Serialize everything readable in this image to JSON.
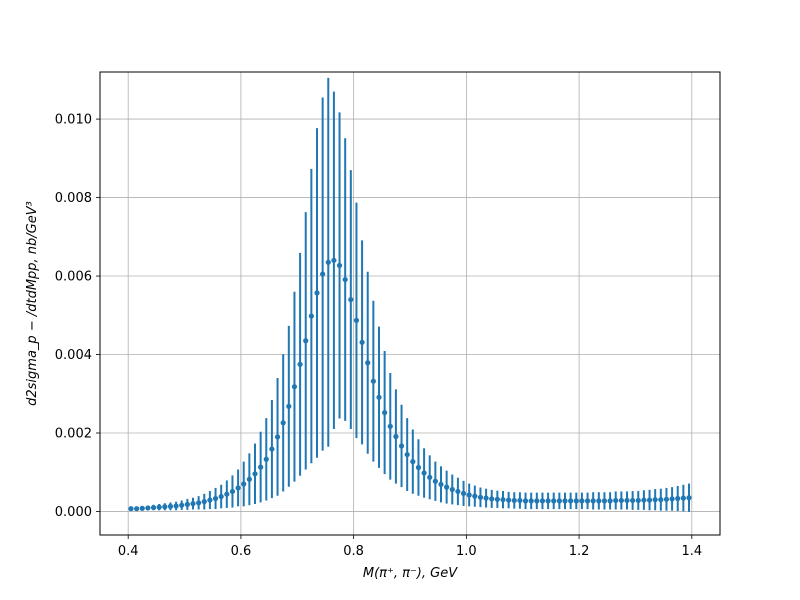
{
  "chart_data": {
    "type": "scatter",
    "title": "",
    "xlabel": "M(π⁺, π⁻), GeV",
    "ylabel": "d2sigma_p − /dtdMpp, nb/GeV³",
    "xlim": [
      0.35,
      1.45
    ],
    "ylim": [
      -0.0006,
      0.0112
    ],
    "xticks": [
      0.4,
      0.6,
      0.8,
      1.0,
      1.2,
      1.4
    ],
    "xtick_labels": [
      "0.4",
      "0.6",
      "0.8",
      "1.0",
      "1.2",
      "1.4"
    ],
    "yticks": [
      0.0,
      0.002,
      0.004,
      0.006,
      0.008,
      0.01
    ],
    "ytick_labels": [
      "0.000",
      "0.002",
      "0.004",
      "0.006",
      "0.008",
      "0.010"
    ],
    "grid": true,
    "color": "#1f77b4",
    "series": [
      {
        "x": [
          0.405,
          0.415,
          0.425,
          0.435,
          0.445,
          0.455,
          0.465,
          0.475,
          0.485,
          0.495,
          0.505,
          0.515,
          0.525,
          0.535,
          0.545,
          0.555,
          0.565,
          0.575,
          0.585,
          0.595,
          0.605,
          0.615,
          0.625,
          0.635,
          0.645,
          0.655,
          0.665,
          0.675,
          0.685,
          0.695,
          0.705,
          0.715,
          0.725,
          0.735,
          0.745,
          0.755,
          0.765,
          0.775,
          0.785,
          0.795,
          0.805,
          0.815,
          0.825,
          0.835,
          0.845,
          0.855,
          0.865,
          0.875,
          0.885,
          0.895,
          0.905,
          0.915,
          0.925,
          0.935,
          0.945,
          0.955,
          0.965,
          0.975,
          0.985,
          0.995,
          1.005,
          1.015,
          1.025,
          1.035,
          1.045,
          1.055,
          1.065,
          1.075,
          1.085,
          1.095,
          1.105,
          1.115,
          1.125,
          1.135,
          1.145,
          1.155,
          1.165,
          1.175,
          1.185,
          1.195,
          1.205,
          1.215,
          1.225,
          1.235,
          1.245,
          1.255,
          1.265,
          1.275,
          1.285,
          1.295,
          1.305,
          1.315,
          1.325,
          1.335,
          1.345,
          1.355,
          1.365,
          1.375,
          1.385,
          1.395
        ],
        "y": [
          7e-05,
          7e-05,
          8e-05,
          9e-05,
          0.0001,
          0.00011,
          0.00012,
          0.00013,
          0.00014,
          0.00016,
          0.00018,
          0.0002,
          0.00022,
          0.00025,
          0.00029,
          0.00033,
          0.00038,
          0.00044,
          0.00051,
          0.0006,
          0.0007,
          0.00082,
          0.00096,
          0.00113,
          0.00133,
          0.00159,
          0.0019,
          0.00226,
          0.00268,
          0.00318,
          0.00375,
          0.00435,
          0.00498,
          0.00557,
          0.00605,
          0.00635,
          0.0064,
          0.00627,
          0.00591,
          0.0054,
          0.00487,
          0.00431,
          0.00379,
          0.00332,
          0.00291,
          0.00252,
          0.00217,
          0.00191,
          0.00167,
          0.00145,
          0.00127,
          0.00112,
          0.00098,
          0.00087,
          0.00077,
          0.00069,
          0.00062,
          0.00056,
          0.00051,
          0.00046,
          0.00042,
          0.00039,
          0.00036,
          0.00034,
          0.00032,
          0.00031,
          0.0003,
          0.00029,
          0.00028,
          0.00028,
          0.00027,
          0.00027,
          0.00027,
          0.00027,
          0.00027,
          0.00027,
          0.00027,
          0.00027,
          0.00027,
          0.00027,
          0.00027,
          0.00027,
          0.00027,
          0.00027,
          0.00027,
          0.00027,
          0.00028,
          0.00028,
          0.00028,
          0.00028,
          0.00028,
          0.00029,
          0.00029,
          0.0003,
          0.0003,
          0.00031,
          0.00032,
          0.00033,
          0.00034,
          0.00035
        ],
        "yerr": [
          4e-05,
          5e-05,
          6e-05,
          6e-05,
          7e-05,
          8e-05,
          9e-05,
          0.0001,
          0.00011,
          0.00012,
          0.00014,
          0.00015,
          0.00017,
          0.0002,
          0.00023,
          0.00027,
          0.0003,
          0.00035,
          0.00041,
          0.00047,
          0.00057,
          0.00066,
          0.00077,
          0.0009,
          0.00105,
          0.00125,
          0.0015,
          0.00175,
          0.00205,
          0.00242,
          0.00284,
          0.00328,
          0.00375,
          0.0042,
          0.0045,
          0.0047,
          0.0043,
          0.0039,
          0.0036,
          0.0033,
          0.003,
          0.0026,
          0.00232,
          0.00205,
          0.0018,
          0.00157,
          0.00136,
          0.0012,
          0.00105,
          0.00093,
          0.00082,
          0.00072,
          0.00063,
          0.00056,
          0.0005,
          0.00046,
          0.00042,
          0.00038,
          0.00035,
          0.00032,
          0.00029,
          0.00027,
          0.00025,
          0.00024,
          0.00023,
          0.00022,
          0.00022,
          0.00021,
          0.00021,
          0.00021,
          0.00021,
          0.00021,
          0.00021,
          0.00021,
          0.00021,
          0.00021,
          0.00021,
          0.00021,
          0.00021,
          0.00021,
          0.00021,
          0.00021,
          0.00022,
          0.00022,
          0.00022,
          0.00022,
          0.00023,
          0.00023,
          0.00023,
          0.00024,
          0.00024,
          0.00025,
          0.00026,
          0.00027,
          0.00028,
          0.00029,
          0.0003,
          0.00032,
          0.00034,
          0.00036
        ]
      }
    ]
  }
}
